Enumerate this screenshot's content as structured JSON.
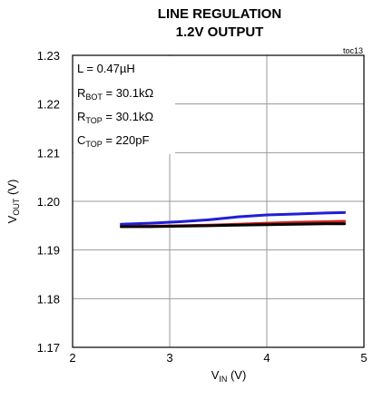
{
  "chart_data": {
    "type": "line",
    "title_lines": [
      "LINE REGULATION",
      "1.2V OUTPUT"
    ],
    "corner_label": "toc13",
    "xlabel": {
      "main": "V",
      "sub": "IN",
      "unit": " (V)"
    },
    "ylabel": {
      "main": "V",
      "sub": "OUT",
      "unit": " (V)"
    },
    "xlim": [
      2,
      5
    ],
    "ylim": [
      1.17,
      1.23
    ],
    "x_ticks": [
      2,
      3,
      4,
      5
    ],
    "x_tick_labels": [
      "2",
      "3",
      "4",
      "5"
    ],
    "y_ticks": [
      1.17,
      1.18,
      1.19,
      1.2,
      1.21,
      1.22,
      1.23
    ],
    "y_tick_labels": [
      "1.17",
      "1.18",
      "1.19",
      "1.20",
      "1.21",
      "1.22",
      "1.23"
    ],
    "grid": true,
    "annotations": [
      {
        "main": "L = 0.47µH",
        "sub": "",
        "rest": ""
      },
      {
        "main": "R",
        "sub": "BOT",
        "rest": " = 30.1kΩ"
      },
      {
        "main": "R",
        "sub": "TOP",
        "rest": " = 30.1kΩ"
      },
      {
        "main": "C",
        "sub": "TOP",
        "rest": " = 220pF"
      }
    ],
    "series": [
      {
        "color": "#1f1fd6",
        "x": [
          2.5,
          2.8,
          3.1,
          3.4,
          3.7,
          4.0,
          4.3,
          4.6,
          4.8
        ],
        "y": [
          1.1953,
          1.1955,
          1.1958,
          1.1962,
          1.1968,
          1.1972,
          1.1974,
          1.1976,
          1.1977
        ]
      },
      {
        "color": "#d42020",
        "x": [
          2.5,
          2.8,
          3.1,
          3.4,
          3.7,
          4.0,
          4.3,
          4.6,
          4.8
        ],
        "y": [
          1.1948,
          1.1949,
          1.195,
          1.1951,
          1.1953,
          1.1955,
          1.1957,
          1.1958,
          1.1959
        ]
      },
      {
        "color": "#000000",
        "x": [
          2.5,
          2.8,
          3.1,
          3.4,
          3.7,
          4.0,
          4.3,
          4.6,
          4.8
        ],
        "y": [
          1.1948,
          1.1948,
          1.1949,
          1.195,
          1.1951,
          1.1952,
          1.1953,
          1.1954,
          1.1954
        ]
      }
    ]
  }
}
